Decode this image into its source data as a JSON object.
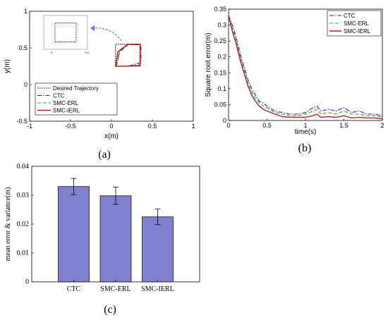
{
  "panels": {
    "a": {
      "caption": "(a)"
    },
    "b": {
      "caption": "(b)"
    },
    "c": {
      "caption": "(c)"
    }
  },
  "chart_data": [
    {
      "id": "a",
      "type": "line",
      "xlabel": "x(m)",
      "ylabel": "y(m)",
      "xlim": [
        -1,
        1
      ],
      "ylim": [
        -0.5,
        1
      ],
      "xticks": [
        "-1",
        "-0.5",
        "0",
        "0.5",
        "1"
      ],
      "yticks": [
        "-0.5",
        "0",
        "0.5",
        "1"
      ],
      "legend_position": "bottom-left",
      "series": [
        {
          "name": "Desired Trajectory",
          "color": "#000000",
          "dash": "dotted",
          "x": [
            0.05,
            0.35,
            0.35,
            0.05,
            0.05
          ],
          "y": [
            0.25,
            0.25,
            0.55,
            0.55,
            0.25
          ]
        },
        {
          "name": "CTC",
          "color": "#1f1fcc",
          "dash": "dashdot",
          "x": [
            0.06,
            0.1,
            0.2,
            0.36,
            0.36,
            0.2,
            0.06,
            0.06
          ],
          "y": [
            0.25,
            0.45,
            0.55,
            0.54,
            0.3,
            0.25,
            0.25,
            0.25
          ]
        },
        {
          "name": "SMC-ERL",
          "color": "#22aa22",
          "dash": "dashed",
          "x": [
            0.06,
            0.1,
            0.2,
            0.35,
            0.35,
            0.2,
            0.06
          ],
          "y": [
            0.25,
            0.44,
            0.54,
            0.55,
            0.27,
            0.25,
            0.25
          ]
        },
        {
          "name": "SMC-IERL",
          "color": "#b22222",
          "dash": "solid",
          "x": [
            0.05,
            0.08,
            0.2,
            0.35,
            0.35,
            0.2,
            0.05
          ],
          "y": [
            0.25,
            0.45,
            0.55,
            0.55,
            0.26,
            0.25,
            0.25
          ]
        }
      ],
      "inset": {
        "xticks": [
          "0",
          "0.5"
        ],
        "x": [
          0.05,
          0.35,
          0.35,
          0.05,
          0.05
        ],
        "y": [
          0.25,
          0.25,
          0.55,
          0.55,
          0.25
        ]
      }
    },
    {
      "id": "b",
      "type": "line",
      "xlabel": "time(s)",
      "ylabel": "Square root error(m)",
      "xlim": [
        0,
        2
      ],
      "ylim": [
        0,
        0.35
      ],
      "xticks": [
        "0",
        "0.5",
        "1",
        "1.5",
        "2"
      ],
      "yticks": [
        "0",
        "0.05",
        "0.1",
        "0.15",
        "0.2",
        "0.25",
        "0.3",
        "0.35"
      ],
      "legend_position": "top-right",
      "series": [
        {
          "name": "CTC",
          "color": "#1f1fcc",
          "dash": "dashdot",
          "x": [
            0,
            0.05,
            0.1,
            0.15,
            0.2,
            0.25,
            0.3,
            0.35,
            0.4,
            0.45,
            0.5,
            0.6,
            0.7,
            0.8,
            0.9,
            1.0,
            1.1,
            1.15,
            1.2,
            1.3,
            1.4,
            1.5,
            1.6,
            1.7,
            1.8,
            1.9,
            2.0
          ],
          "y": [
            0.33,
            0.3,
            0.26,
            0.21,
            0.17,
            0.13,
            0.1,
            0.08,
            0.06,
            0.055,
            0.045,
            0.03,
            0.025,
            0.02,
            0.02,
            0.025,
            0.04,
            0.045,
            0.03,
            0.035,
            0.03,
            0.04,
            0.025,
            0.03,
            0.02,
            0.02,
            0.015
          ]
        },
        {
          "name": "SMC-ERL",
          "color": "#22aa22",
          "dash": "dashed",
          "x": [
            0,
            0.05,
            0.1,
            0.15,
            0.2,
            0.25,
            0.3,
            0.35,
            0.4,
            0.45,
            0.5,
            0.6,
            0.7,
            0.8,
            0.9,
            1.0,
            1.1,
            1.15,
            1.2,
            1.3,
            1.4,
            1.5,
            1.6,
            1.7,
            1.8,
            1.9,
            2.0
          ],
          "y": [
            0.33,
            0.29,
            0.25,
            0.2,
            0.16,
            0.12,
            0.09,
            0.07,
            0.055,
            0.045,
            0.04,
            0.025,
            0.02,
            0.015,
            0.015,
            0.02,
            0.03,
            0.035,
            0.02,
            0.025,
            0.02,
            0.03,
            0.02,
            0.02,
            0.015,
            0.015,
            0.01
          ]
        },
        {
          "name": "SMC-IERL",
          "color": "#b22222",
          "dash": "solid",
          "x": [
            0,
            0.05,
            0.1,
            0.15,
            0.2,
            0.25,
            0.3,
            0.35,
            0.4,
            0.45,
            0.5,
            0.6,
            0.7,
            0.8,
            0.9,
            1.0,
            1.1,
            1.15,
            1.2,
            1.3,
            1.4,
            1.5,
            1.6,
            1.7,
            1.8,
            1.9,
            2.0
          ],
          "y": [
            0.33,
            0.28,
            0.24,
            0.19,
            0.15,
            0.11,
            0.08,
            0.06,
            0.045,
            0.035,
            0.03,
            0.02,
            0.012,
            0.01,
            0.01,
            0.01,
            0.015,
            0.02,
            0.01,
            0.012,
            0.01,
            0.015,
            0.008,
            0.01,
            0.008,
            0.008,
            0.005
          ]
        }
      ]
    },
    {
      "id": "c",
      "type": "bar",
      "ylabel": "mean error & variance(m)",
      "ylim": [
        0,
        0.04
      ],
      "yticks": [
        "0",
        "0.01",
        "0.02",
        "0.03",
        "0.04"
      ],
      "categories": [
        "CTC",
        "SMC-ERL",
        "SMC-IERL"
      ],
      "values": [
        0.033,
        0.0298,
        0.0225
      ],
      "errors": [
        0.0028,
        0.003,
        0.0027
      ],
      "bar_color": "#8080d0"
    }
  ]
}
